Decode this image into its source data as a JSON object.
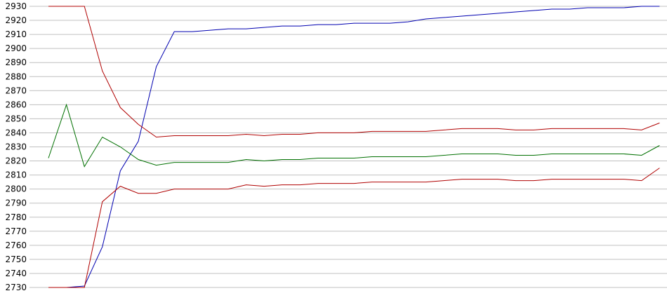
{
  "chart_data": {
    "type": "line",
    "title": "",
    "xlabel": "",
    "ylabel": "",
    "ylim": [
      2730,
      2930
    ],
    "yticks": [
      2730,
      2740,
      2750,
      2760,
      2770,
      2780,
      2790,
      2800,
      2810,
      2820,
      2830,
      2840,
      2850,
      2860,
      2870,
      2880,
      2890,
      2900,
      2910,
      2920,
      2930
    ],
    "grid": "horizontal",
    "legend": "none",
    "x": [
      1,
      2,
      3,
      4,
      5,
      6,
      7,
      8,
      9,
      10,
      11,
      12,
      13,
      14,
      15,
      16,
      17,
      18,
      19,
      20,
      21,
      22,
      23,
      24,
      25,
      26,
      27,
      28,
      29,
      30,
      31,
      32,
      33,
      34,
      35
    ],
    "series": [
      {
        "color": "#0000b0",
        "values": [
          2730,
          2730,
          2731,
          2759,
          2813,
          2834,
          2887,
          2912,
          2912,
          2913,
          2914,
          2914,
          2915,
          2916,
          2916,
          2917,
          2917,
          2918,
          2918,
          2918,
          2919,
          2921,
          2922,
          2923,
          2924,
          2925,
          2926,
          2927,
          2928,
          2928,
          2929,
          2929,
          2929,
          2930,
          2930
        ]
      },
      {
        "color": "#b00000",
        "values": [
          2930,
          2930,
          2930,
          2884,
          2858,
          2846,
          2837,
          2838,
          2838,
          2838,
          2838,
          2839,
          2838,
          2839,
          2839,
          2840,
          2840,
          2840,
          2841,
          2841,
          2841,
          2841,
          2842,
          2843,
          2843,
          2843,
          2842,
          2842,
          2843,
          2843,
          2843,
          2843,
          2843,
          2842,
          2847
        ]
      },
      {
        "color": "#007000",
        "values": [
          2822,
          2860,
          2816,
          2837,
          2830,
          2821,
          2817,
          2819,
          2819,
          2819,
          2819,
          2821,
          2820,
          2821,
          2821,
          2822,
          2822,
          2822,
          2823,
          2823,
          2823,
          2823,
          2824,
          2825,
          2825,
          2825,
          2824,
          2824,
          2825,
          2825,
          2825,
          2825,
          2825,
          2824,
          2831
        ]
      },
      {
        "color": "#b00000",
        "values": [
          2730,
          2730,
          2730,
          2791,
          2802,
          2797,
          2797,
          2800,
          2800,
          2800,
          2800,
          2803,
          2802,
          2803,
          2803,
          2804,
          2804,
          2804,
          2805,
          2805,
          2805,
          2805,
          2806,
          2807,
          2807,
          2807,
          2806,
          2806,
          2807,
          2807,
          2807,
          2807,
          2807,
          2806,
          2815
        ]
      }
    ]
  }
}
